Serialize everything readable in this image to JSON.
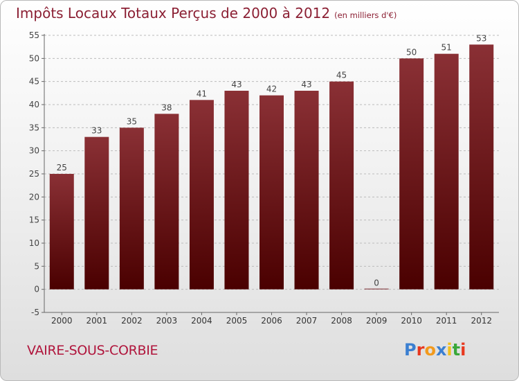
{
  "page": {
    "title": "Impôts Locaux Totaux Perçus de 2000 à 2012",
    "subtitle": "(en milliers d'€)",
    "place_name": "VAIRE-SOUS-CORBIE",
    "logo_text": "Proxiti"
  },
  "colors": {
    "title": "#8b1f33",
    "place": "#b0153c",
    "bar_top": "#8a3035",
    "bar_bottom": "#4a0000",
    "grid": "#bbbbbb",
    "logo_letters": [
      "#3b7fd1",
      "#e8381f",
      "#f29a1d",
      "#3b7fd1",
      "#f2c01d",
      "#3aa83a",
      "#e8381f"
    ]
  },
  "chart_data": {
    "type": "bar",
    "title": "Impôts Locaux Totaux Perçus de 2000 à 2012",
    "subtitle": "(en milliers d'€)",
    "xlabel": "",
    "ylabel": "",
    "categories": [
      "2000",
      "2001",
      "2002",
      "2003",
      "2004",
      "2005",
      "2006",
      "2007",
      "2008",
      "2009",
      "2010",
      "2011",
      "2012"
    ],
    "values": [
      25,
      33,
      35,
      38,
      41,
      43,
      42,
      43,
      45,
      0,
      50,
      51,
      53
    ],
    "ylim": [
      -5,
      55
    ],
    "yticks": [
      -5,
      0,
      5,
      10,
      15,
      20,
      25,
      30,
      35,
      40,
      45,
      50,
      55
    ],
    "grid": "horizontal dashed",
    "legend": "none"
  }
}
